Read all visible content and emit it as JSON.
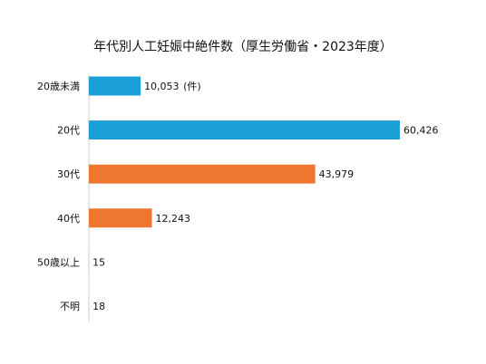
{
  "chart_data": {
    "type": "bar",
    "orientation": "horizontal",
    "title": "年代別人工妊娠中絶件数（厚生労働省・2023年度）",
    "categories": [
      "20歳未満",
      "20代",
      "30代",
      "40代",
      "50歳以上",
      "不明"
    ],
    "values": [
      10053,
      60426,
      43979,
      12243,
      15,
      18
    ],
    "value_labels": [
      "10,053",
      "60,426",
      "43,979",
      "12,243",
      "15",
      "18"
    ],
    "unit_note": "(件)",
    "colors": [
      "#1a9fd6",
      "#1a9fd6",
      "#ef7631",
      "#ef7631",
      "#ef7631",
      "#ef7631"
    ],
    "xlim": [
      0,
      60426
    ],
    "grid": false,
    "legend": "none"
  }
}
